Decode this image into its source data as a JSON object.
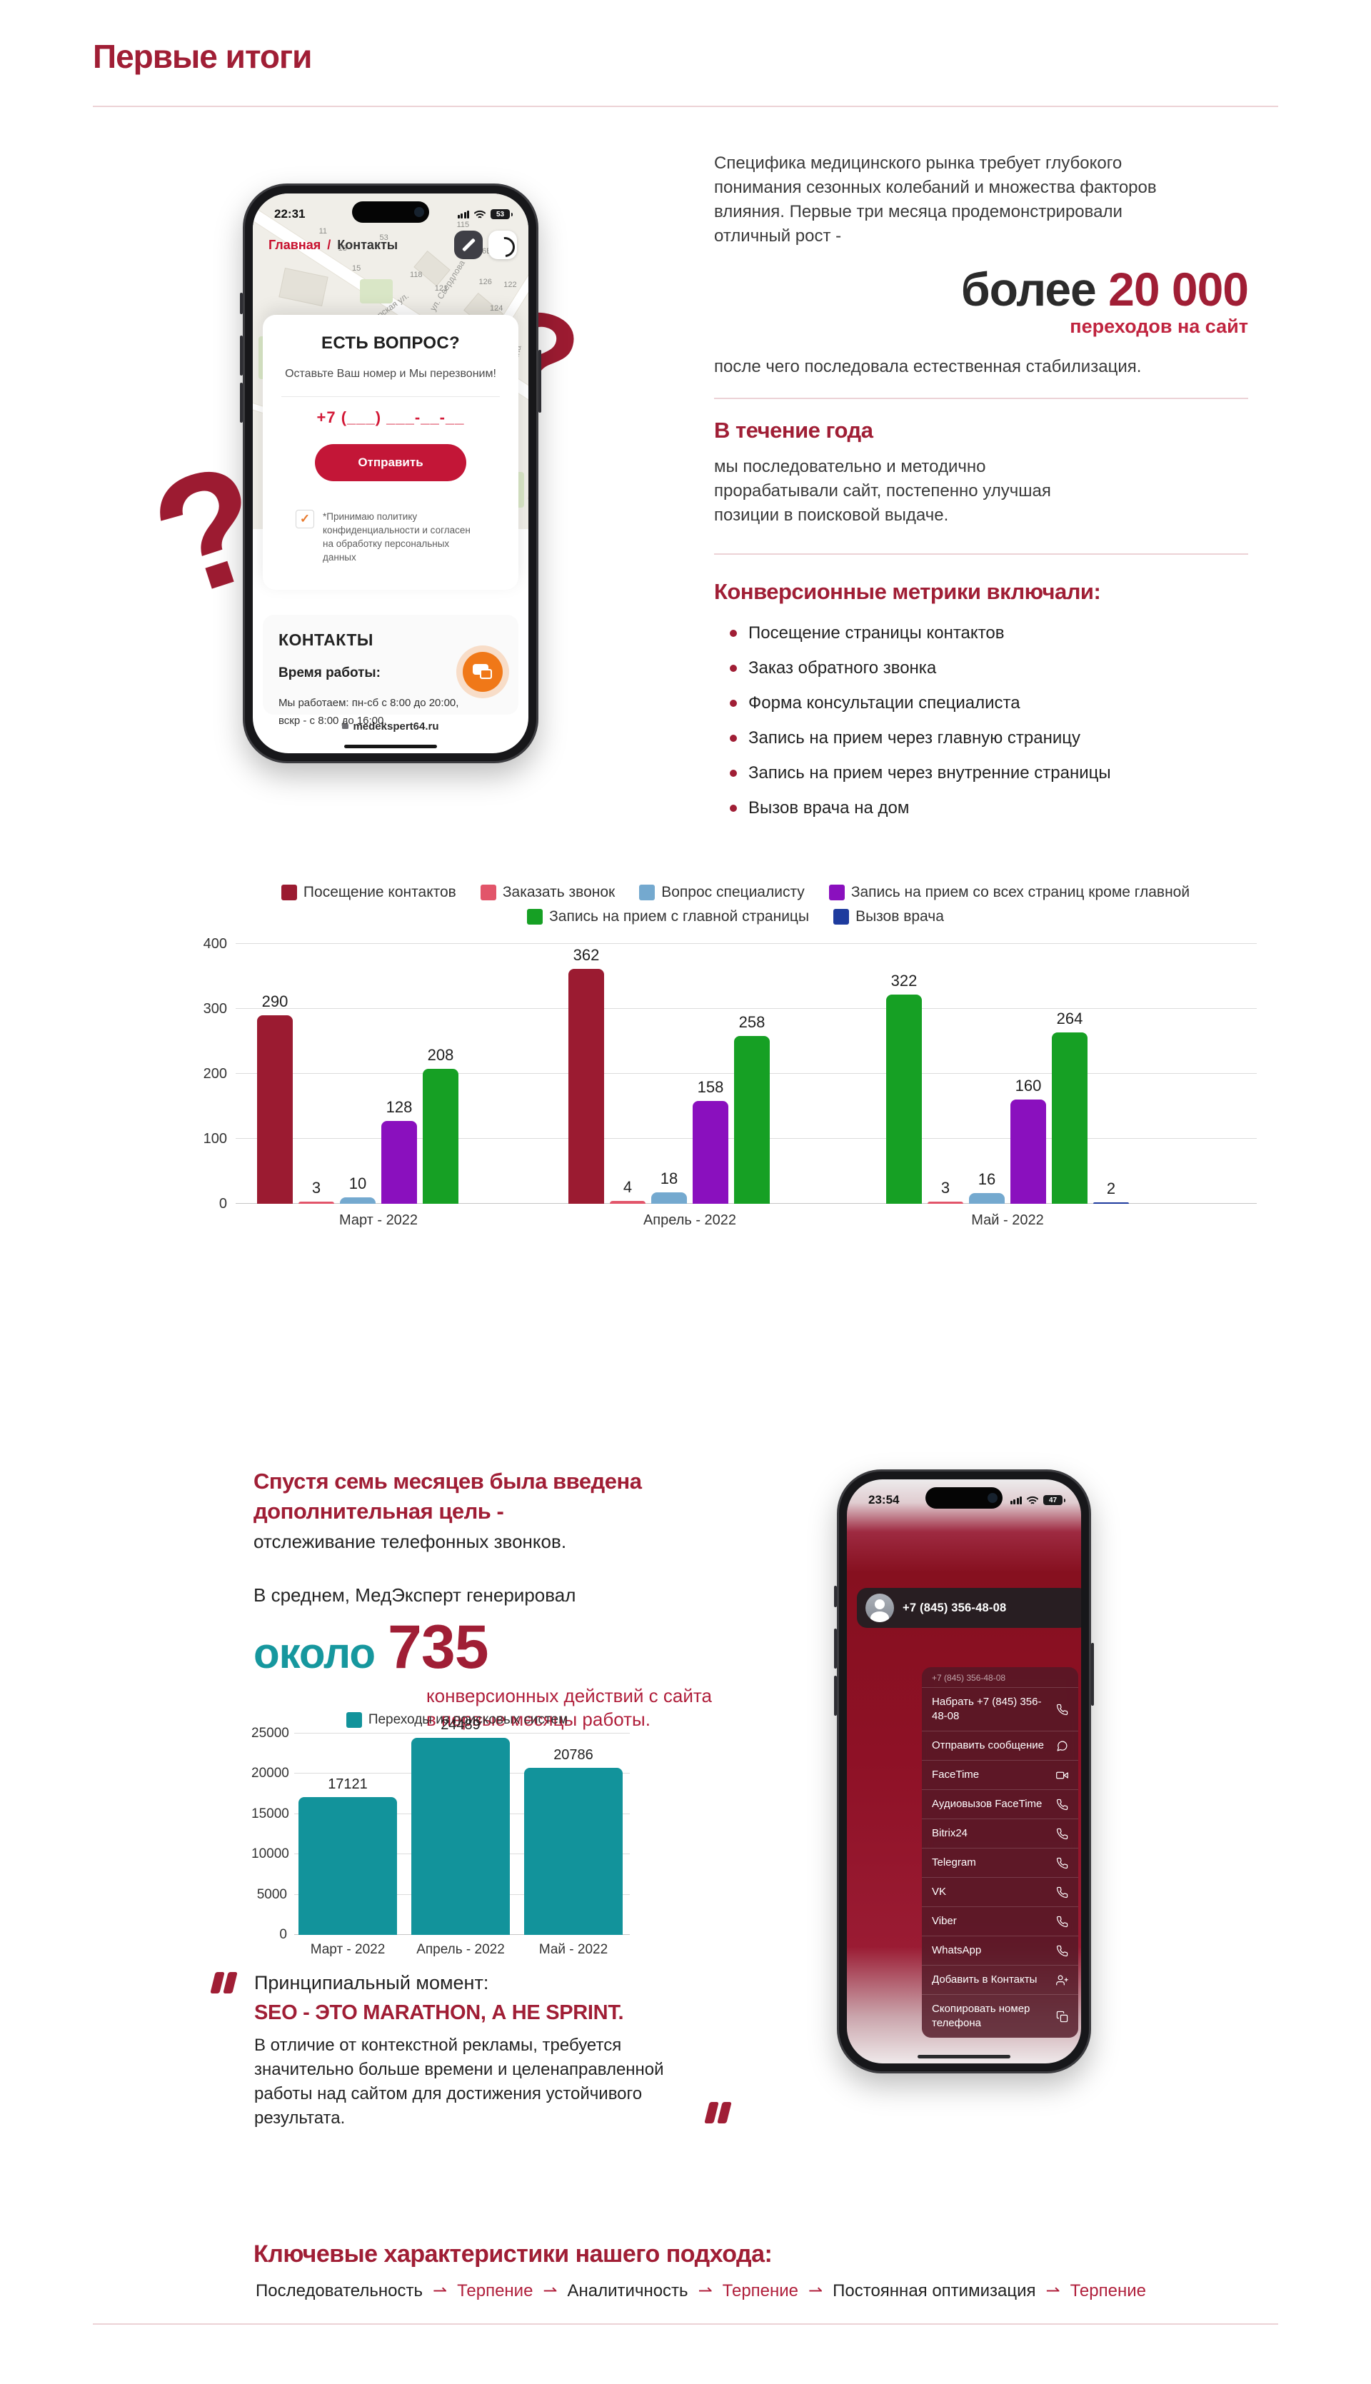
{
  "page": {
    "title": "Первые итоги",
    "accent_color": "#a01e35",
    "red_text_color": "#b01f3b",
    "teal_color": "#16979e",
    "divider_color": "#ecd2d6"
  },
  "intro": {
    "paragraph": "Специфика медицинского рынка требует глубокого понимания сезонных колебаний и множества факторов влияния. Первые три месяца продемонстрировали отличный рост -",
    "stat_prefix": "более",
    "stat_value": "20 000",
    "stat_caption": "переходов на сайт",
    "after_text": "после чего последовала естественная стабилизация."
  },
  "during_year": {
    "heading": "В течение года",
    "text": "мы последовательно и методично прорабатывали сайт, постепенно улучшая позиции в поисковой выдаче."
  },
  "metrics": {
    "heading": "Конверсионные метрики включали:",
    "items": [
      "Посещение страницы контактов",
      "Заказ обратного звонка",
      "Форма консультации специалиста",
      "Запись на прием через главную страницу",
      "Запись на прием через внутренние страницы",
      "Вызов врача на дом"
    ]
  },
  "phone1": {
    "time": "22:31",
    "battery": "53",
    "breadcrumb_home": "Главная",
    "breadcrumb_sep": "/",
    "breadcrumb_current": "Контакты",
    "map": {
      "streets": [
        "ул. Свердлова",
        "Пионерская ул.",
        "Ленина",
        "Школа-"
      ],
      "numbers": [
        "11",
        "13",
        "15",
        "53",
        "118",
        "115",
        "121",
        "120",
        "122",
        "125",
        "19",
        "126Б",
        "126",
        "122",
        "124",
        "128",
        "132"
      ]
    },
    "form": {
      "title": "ЕСТЬ ВОПРОС?",
      "subtitle": "Оставьте Ваш номер и Мы перезвоним!",
      "phone_placeholder": "+7 (___) ___-__-__",
      "submit_label": "Отправить",
      "checkbox_glyph": "✓",
      "consent": "*Принимаю политику конфиденциальности и согласен на обработку персональных данных"
    },
    "contacts": {
      "heading": "КОНТАКТЫ",
      "hours_label": "Время работы:",
      "hours_line1": "Мы работаем: пн-сб с 8:00 до 20:00,",
      "hours_line2": "вскр - с 8:00 до 16:00.",
      "url": "medekspert64.ru"
    }
  },
  "chart_data": [
    {
      "type": "bar",
      "categories": [
        "Март - 2022",
        "Апрель - 2022",
        "Май - 2022"
      ],
      "series": [
        {
          "name": "Посещение контактов",
          "color": "#9b1b31",
          "values": [
            290,
            362,
            322
          ]
        },
        {
          "name": "Заказать звонок",
          "color": "#e2556a",
          "values": [
            3,
            4,
            3
          ]
        },
        {
          "name": "Вопрос специалисту",
          "color": "#74a9cf",
          "values": [
            10,
            18,
            16
          ]
        },
        {
          "name": "Запись на прием со всех страниц кроме главной",
          "color": "#8a10be",
          "values": [
            128,
            158,
            160
          ]
        },
        {
          "name": "Запись на прием с главной страницы",
          "color": "#16a024",
          "values": [
            208,
            258,
            264
          ]
        },
        {
          "name": "Вызов врача",
          "color": "#1e3b9e",
          "values": [
            0,
            0,
            2
          ]
        }
      ],
      "display_color_overrides": [
        {
          "category": 2,
          "series": 0,
          "color": "#16a024"
        }
      ],
      "ylim": [
        0,
        400
      ],
      "yticks": [
        0,
        100,
        200,
        300,
        400
      ],
      "grid": true,
      "legend_position": "top",
      "note": "In the source image the May bar of series 'Посещение контактов' (322) is rendered green."
    },
    {
      "type": "bar",
      "legend": "Переходы из поисковых систем",
      "categories": [
        "Март - 2022",
        "Апрель - 2022",
        "Май - 2022"
      ],
      "values": [
        17121,
        24489,
        20786
      ],
      "color": "#12939b",
      "ylim": [
        0,
        25000
      ],
      "yticks": [
        0,
        5000,
        10000,
        15000,
        20000,
        25000
      ],
      "grid": true,
      "legend_position": "top"
    }
  ],
  "second_stage": {
    "heading_line1": "Спустя семь месяцев была введена",
    "heading_line2": "дополнительная цель -",
    "subtext": "отслеживание телефонных звонков.",
    "avg_intro": "В среднем, МедЭксперт генерировал",
    "stat_prefix": "около",
    "stat_value": "735",
    "stat_caption_line1": "конверсионных действий с сайта",
    "stat_caption_line2": "в первые месяцы работы."
  },
  "quote": {
    "line1": "Принципиальный момент:",
    "line2": "SEO - ЭТО MARATHON, А НЕ SPRINT.",
    "body": "В отличие от контекстной рекламы, требуется значительно больше времени и целенаправленной работы над сайтом для достижения устойчивого результата."
  },
  "phone2": {
    "time": "23:54",
    "battery": "47",
    "contact_number": "+7 (845) 356-48-08",
    "menu_header": "+7 (845) 356-48-08",
    "menu_items": [
      {
        "label": "Набрать +7 (845) 356-48-08",
        "icon": "phone"
      },
      {
        "label": "Отправить сообщение",
        "icon": "message"
      },
      {
        "label": "FaceTime",
        "icon": "video"
      },
      {
        "label": "Аудиовызов FaceTime",
        "icon": "phone"
      },
      {
        "label": "Bitrix24",
        "icon": "phone"
      },
      {
        "label": "Telegram",
        "icon": "phone"
      },
      {
        "label": "VK",
        "icon": "phone"
      },
      {
        "label": "Viber",
        "icon": "phone"
      },
      {
        "label": "WhatsApp",
        "icon": "phone"
      },
      {
        "label": "Добавить в Контакты",
        "icon": "add-contact"
      },
      {
        "label": "Скопировать номер телефона",
        "icon": "copy"
      }
    ]
  },
  "approach": {
    "heading": "Ключевые характеристики нашего подхода:",
    "arrow": "⇀",
    "sequence": [
      {
        "label": "Последовательность",
        "type": "dark"
      },
      {
        "label": "Терпение",
        "type": "red"
      },
      {
        "label": "Аналитичность",
        "type": "dark"
      },
      {
        "label": "Терпение",
        "type": "red"
      },
      {
        "label": "Постоянная оптимизация",
        "type": "dark"
      },
      {
        "label": "Терпение",
        "type": "red"
      }
    ]
  }
}
